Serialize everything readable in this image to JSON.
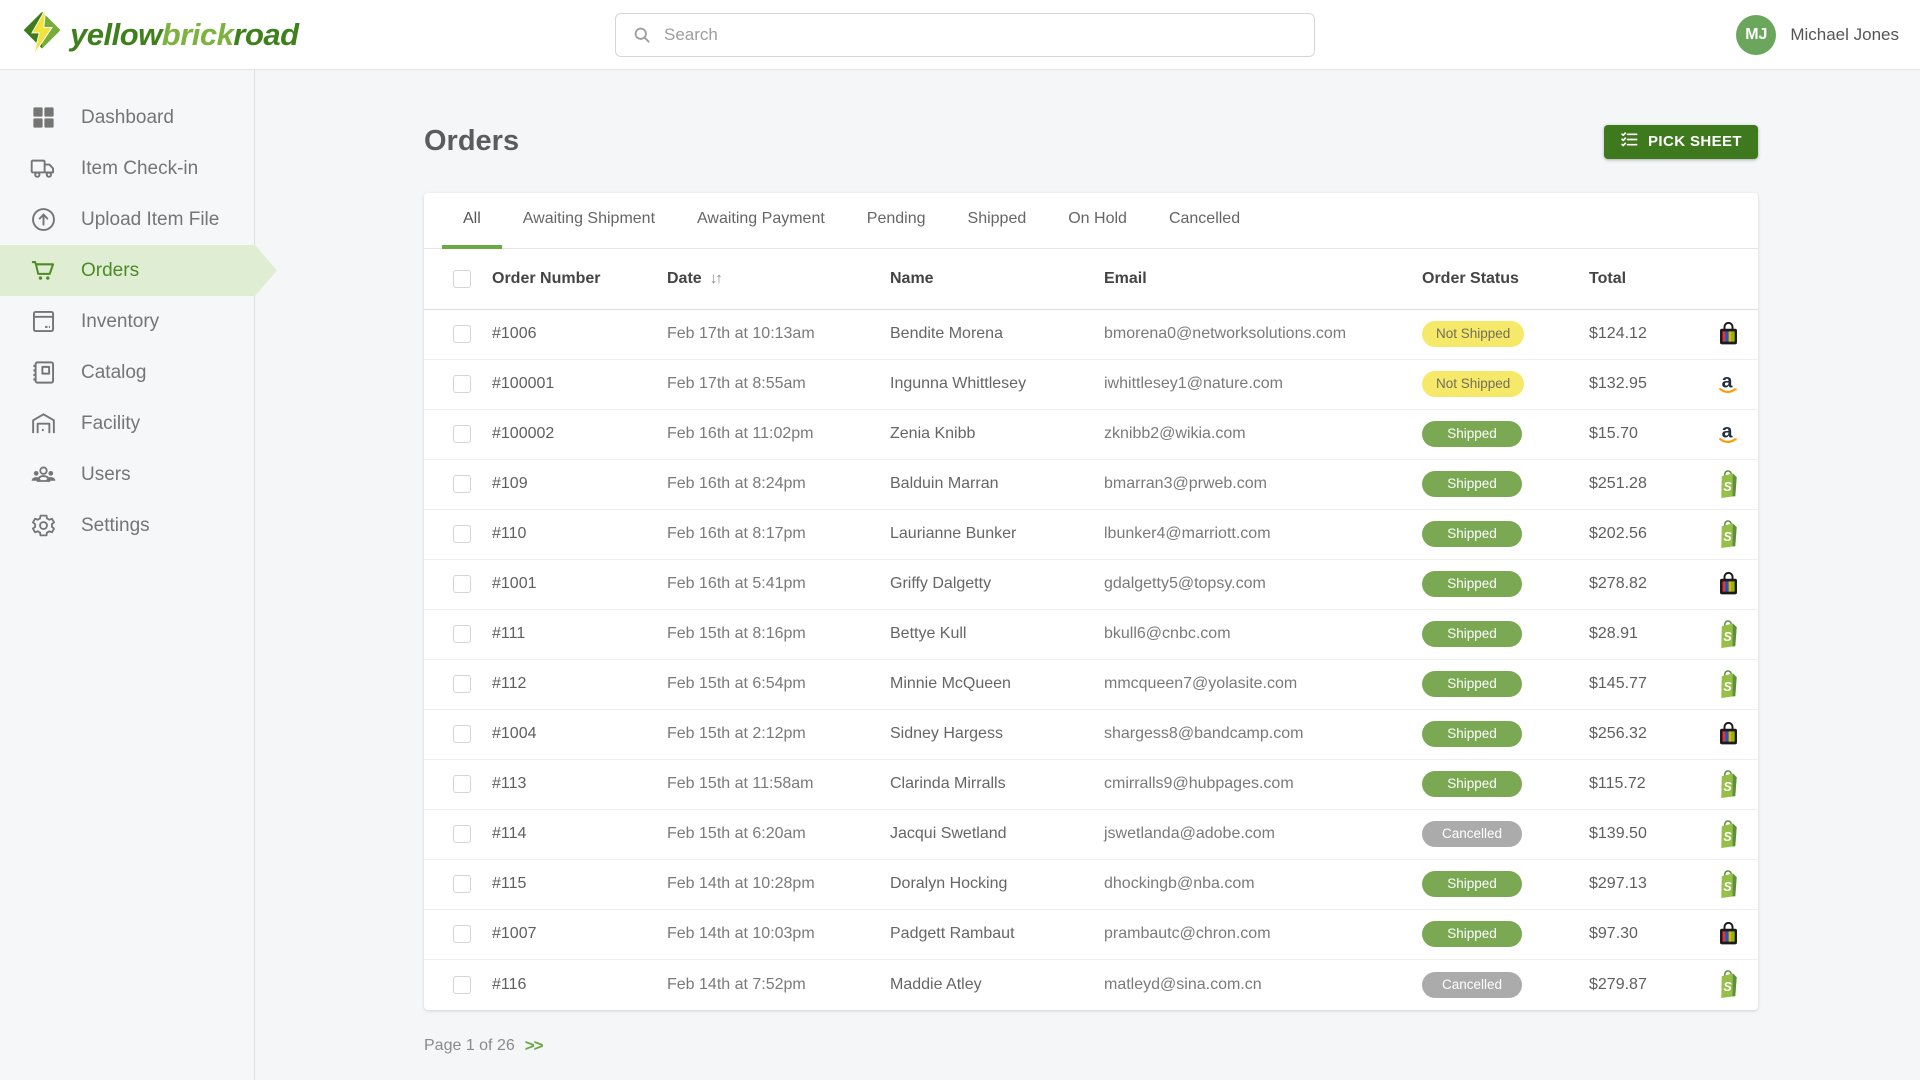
{
  "brand": {
    "logo_icon": "lightning-diamond-icon",
    "name_parts": [
      "yellow",
      "brick",
      "road"
    ]
  },
  "topbar": {
    "search": {
      "placeholder": "Search",
      "icon": "search-icon"
    },
    "user": {
      "initials": "MJ",
      "name": "Michael Jones"
    }
  },
  "sidebar": {
    "items": [
      {
        "label": "Dashboard",
        "icon": "dashboard-grid-icon",
        "active": false
      },
      {
        "label": "Item Check-in",
        "icon": "truck-icon",
        "active": false
      },
      {
        "label": "Upload Item File",
        "icon": "upload-circle-icon",
        "active": false
      },
      {
        "label": "Orders",
        "icon": "cart-icon",
        "active": true
      },
      {
        "label": "Inventory",
        "icon": "inventory-box-icon",
        "active": false
      },
      {
        "label": "Catalog",
        "icon": "catalog-book-icon",
        "active": false
      },
      {
        "label": "Facility",
        "icon": "facility-warehouse-icon",
        "active": false
      },
      {
        "label": "Users",
        "icon": "users-icon",
        "active": false
      },
      {
        "label": "Settings",
        "icon": "settings-gear-icon",
        "active": false
      }
    ]
  },
  "page": {
    "title": "Orders",
    "pick_sheet": {
      "label": "PICK SHEET",
      "icon": "checklist-icon"
    }
  },
  "tabs": [
    {
      "label": "All",
      "active": true
    },
    {
      "label": "Awaiting Shipment",
      "active": false
    },
    {
      "label": "Awaiting Payment",
      "active": false
    },
    {
      "label": "Pending",
      "active": false
    },
    {
      "label": "Shipped",
      "active": false
    },
    {
      "label": "On Hold",
      "active": false
    },
    {
      "label": "Cancelled",
      "active": false
    }
  ],
  "table": {
    "headers": {
      "order_number": "Order Number",
      "date": "Date",
      "name": "Name",
      "email": "Email",
      "order_status": "Order Status",
      "total": "Total"
    },
    "sort_icon": "sort-arrows-icon",
    "sort_glyph": "↓↑",
    "rows": [
      {
        "order_number": "#1006",
        "date": "Feb 17th at 10:13am",
        "name": "Bendite Morena",
        "email": "bmorena0@networksolutions.com",
        "status": "Not Shipped",
        "total": "$124.12",
        "channel": "ebay-bag-icon"
      },
      {
        "order_number": "#100001",
        "date": "Feb 17th at 8:55am",
        "name": "Ingunna Whittlesey",
        "email": "iwhittlesey1@nature.com",
        "status": "Not Shipped",
        "total": "$132.95",
        "channel": "amazon-icon"
      },
      {
        "order_number": "#100002",
        "date": "Feb 16th at 11:02pm",
        "name": "Zenia Knibb",
        "email": "zknibb2@wikia.com",
        "status": "Shipped",
        "total": "$15.70",
        "channel": "amazon-icon"
      },
      {
        "order_number": "#109",
        "date": "Feb 16th at 8:24pm",
        "name": "Balduin Marran",
        "email": "bmarran3@prweb.com",
        "status": "Shipped",
        "total": "$251.28",
        "channel": "shopify-icon"
      },
      {
        "order_number": "#110",
        "date": "Feb 16th at 8:17pm",
        "name": "Laurianne Bunker",
        "email": "lbunker4@marriott.com",
        "status": "Shipped",
        "total": "$202.56",
        "channel": "shopify-icon"
      },
      {
        "order_number": "#1001",
        "date": "Feb 16th at 5:41pm",
        "name": "Griffy Dalgetty",
        "email": "gdalgetty5@topsy.com",
        "status": "Shipped",
        "total": "$278.82",
        "channel": "ebay-bag-icon"
      },
      {
        "order_number": "#111",
        "date": "Feb 15th at 8:16pm",
        "name": "Bettye Kull",
        "email": "bkull6@cnbc.com",
        "status": "Shipped",
        "total": "$28.91",
        "channel": "shopify-icon"
      },
      {
        "order_number": "#112",
        "date": "Feb 15th at 6:54pm",
        "name": "Minnie McQueen",
        "email": "mmcqueen7@yolasite.com",
        "status": "Shipped",
        "total": "$145.77",
        "channel": "shopify-icon"
      },
      {
        "order_number": "#1004",
        "date": "Feb 15th at 2:12pm",
        "name": "Sidney Hargess",
        "email": "shargess8@bandcamp.com",
        "status": "Shipped",
        "total": "$256.32",
        "channel": "ebay-bag-icon"
      },
      {
        "order_number": "#113",
        "date": "Feb 15th at 11:58am",
        "name": "Clarinda Mirralls",
        "email": "cmirralls9@hubpages.com",
        "status": "Shipped",
        "total": "$115.72",
        "channel": "shopify-icon"
      },
      {
        "order_number": "#114",
        "date": "Feb 15th at 6:20am",
        "name": "Jacqui Swetland",
        "email": "jswetlanda@adobe.com",
        "status": "Cancelled",
        "total": "$139.50",
        "channel": "shopify-icon"
      },
      {
        "order_number": "#115",
        "date": "Feb 14th at 10:28pm",
        "name": "Doralyn Hocking",
        "email": "dhockingb@nba.com",
        "status": "Shipped",
        "total": "$297.13",
        "channel": "shopify-icon"
      },
      {
        "order_number": "#1007",
        "date": "Feb 14th at 10:03pm",
        "name": "Padgett Rambaut",
        "email": "prambautc@chron.com",
        "status": "Shipped",
        "total": "$97.30",
        "channel": "ebay-bag-icon"
      },
      {
        "order_number": "#116",
        "date": "Feb 14th at 7:52pm",
        "name": "Maddie Atley",
        "email": "matleyd@sina.com.cn",
        "status": "Cancelled",
        "total": "$279.87",
        "channel": "shopify-icon"
      }
    ]
  },
  "pagination": {
    "label": "Page 1 of 26",
    "next": ">>"
  },
  "colors": {
    "brand_green_dark": "#3f801c",
    "brand_green_light": "#7cb23d",
    "button_green": "#3e7a1d",
    "tab_underline_green": "#6aa843",
    "active_item_bg": "#dfeed2",
    "active_item_text": "#4c8b27",
    "avatar_bg": "#6ba65c",
    "badge_not_shipped_bg": "#f6e96a",
    "badge_shipped_bg": "#7aa853",
    "badge_cancelled_bg": "#ababab",
    "ebay_red": "#e53238",
    "ebay_blue": "#0064d2",
    "ebay_yellow": "#f5af02",
    "ebay_green": "#86b817",
    "amazon_orange": "#ff9900",
    "shopify_green": "#95bf47"
  }
}
